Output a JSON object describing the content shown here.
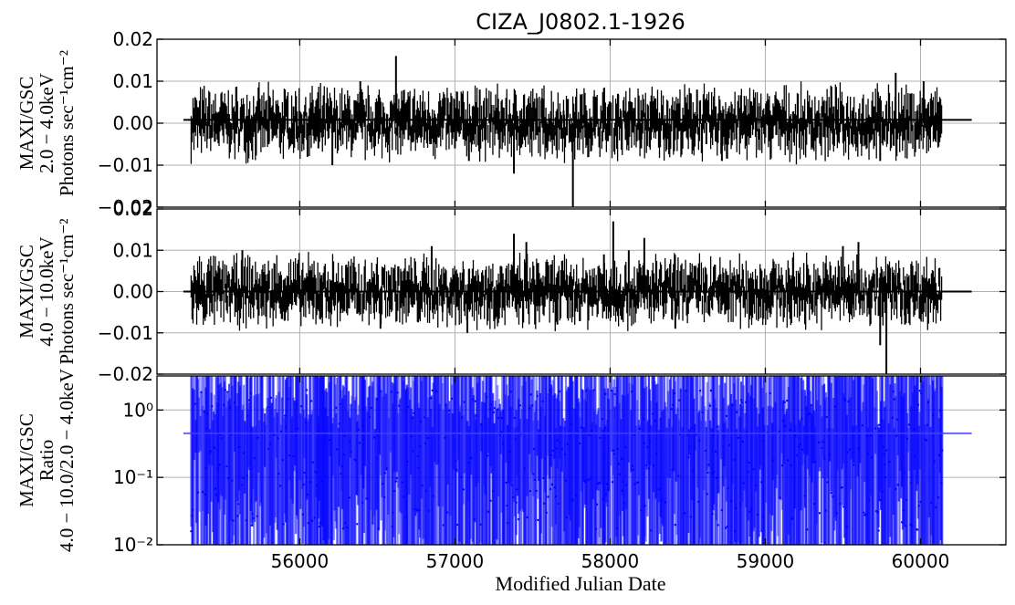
{
  "chart_data": {
    "type": "line",
    "title": "CIZA_J0802.1-1926",
    "xlabel": "Modified Julian Date",
    "xlim": [
      55080,
      60550
    ],
    "x_ticks": [
      56000,
      57000,
      58000,
      59000,
      60000
    ],
    "x_tick_labels": [
      "56000",
      "57000",
      "58000",
      "59000",
      "60000"
    ],
    "grid": true,
    "panels": [
      {
        "id": "soft",
        "ylabel_lines": [
          "MAXI/GSC",
          "2.0 − 4.0keV",
          "Photons sec⁻¹cm⁻²"
        ],
        "scale": "linear",
        "ylim": [
          -0.02,
          0.02
        ],
        "y_ticks": [
          -0.02,
          -0.01,
          0.0,
          0.01,
          0.02
        ],
        "y_tick_labels": [
          "−0.02",
          "−0.01",
          "0.00",
          "0.01",
          "0.02"
        ],
        "mean": 0.0008,
        "mean_x_range": [
          55250,
          60330
        ],
        "data_x_range": [
          55300,
          60140
        ],
        "color": "#000000",
        "points": [
          [
            55320,
            0.0015
          ],
          [
            55360,
            -0.003
          ],
          [
            55410,
            0.004
          ],
          [
            55450,
            -0.002
          ],
          [
            55500,
            0.005
          ],
          [
            55560,
            -0.004
          ],
          [
            55620,
            0.003
          ],
          [
            55680,
            -0.002
          ],
          [
            55720,
            0.004
          ],
          [
            55800,
            -0.005
          ],
          [
            55850,
            0.002
          ],
          [
            55900,
            -0.002
          ],
          [
            55960,
            0.004
          ],
          [
            56050,
            -0.008
          ],
          [
            56120,
            -0.006
          ],
          [
            56210,
            -0.01
          ],
          [
            56280,
            0.003
          ],
          [
            56360,
            -0.004
          ],
          [
            56390,
            0.01
          ],
          [
            56450,
            -0.003
          ],
          [
            56520,
            0.004
          ],
          [
            56580,
            -0.002
          ],
          [
            56620,
            0.016
          ],
          [
            56700,
            -0.004
          ],
          [
            56770,
            0.003
          ],
          [
            56840,
            -0.005
          ],
          [
            56920,
            0.004
          ],
          [
            57000,
            -0.006
          ],
          [
            57050,
            0.007
          ],
          [
            57090,
            -0.009
          ],
          [
            57160,
            0.008
          ],
          [
            57200,
            -0.004
          ],
          [
            57260,
            0.003
          ],
          [
            57320,
            -0.003
          ],
          [
            57380,
            -0.012
          ],
          [
            57420,
            0.003
          ],
          [
            57500,
            -0.002
          ],
          [
            57560,
            0.006
          ],
          [
            57620,
            -0.004
          ],
          [
            57700,
            0.003
          ],
          [
            57760,
            -0.02
          ],
          [
            57830,
            0.002
          ],
          [
            57880,
            -0.004
          ],
          [
            57950,
            0.003
          ],
          [
            58000,
            -0.003
          ],
          [
            58050,
            0.007
          ],
          [
            58100,
            -0.004
          ],
          [
            58140,
            0.005
          ],
          [
            58200,
            -0.006
          ],
          [
            58280,
            0.004
          ],
          [
            58360,
            -0.004
          ],
          [
            58420,
            0.003
          ],
          [
            58500,
            -0.003
          ],
          [
            58560,
            0.008
          ],
          [
            58620,
            -0.005
          ],
          [
            58680,
            0.004
          ],
          [
            58720,
            -0.009
          ],
          [
            58800,
            0.003
          ],
          [
            58880,
            -0.004
          ],
          [
            58960,
            0.004
          ],
          [
            59040,
            -0.003
          ],
          [
            59120,
            0.003
          ],
          [
            59200,
            -0.002
          ],
          [
            59280,
            0.004
          ],
          [
            59360,
            -0.003
          ],
          [
            59440,
            0.004
          ],
          [
            59500,
            -0.002
          ],
          [
            59560,
            0.003
          ],
          [
            59620,
            -0.004
          ],
          [
            59700,
            0.004
          ],
          [
            59740,
            -0.009
          ],
          [
            59800,
            0.004
          ],
          [
            59840,
            0.012
          ],
          [
            59900,
            -0.004
          ],
          [
            59980,
            0.003
          ],
          [
            60020,
            0.01
          ],
          [
            60060,
            -0.003
          ],
          [
            60110,
            0.005
          ]
        ]
      },
      {
        "id": "hard",
        "ylabel_lines": [
          "MAXI/GSC",
          "4.0 − 10.0keV",
          "Photons sec⁻¹cm⁻²"
        ],
        "scale": "linear",
        "ylim": [
          -0.02,
          0.02
        ],
        "y_ticks": [
          -0.02,
          -0.01,
          0.0,
          0.01,
          0.02
        ],
        "y_tick_labels": [
          "−0.02",
          "−0.01",
          "0.00",
          "0.01",
          "0.02"
        ],
        "mean": 0.0,
        "mean_x_range": [
          55250,
          60330
        ],
        "data_x_range": [
          55300,
          60140
        ],
        "color": "#000000",
        "points": [
          [
            55320,
            0.001
          ],
          [
            55370,
            -0.003
          ],
          [
            55420,
            0.005
          ],
          [
            55470,
            -0.002
          ],
          [
            55530,
            0.004
          ],
          [
            55590,
            -0.005
          ],
          [
            55630,
            0.01
          ],
          [
            55690,
            -0.003
          ],
          [
            55760,
            0.003
          ],
          [
            55820,
            -0.004
          ],
          [
            55880,
            0.004
          ],
          [
            55940,
            -0.003
          ],
          [
            56000,
            0.003
          ],
          [
            56060,
            -0.004
          ],
          [
            56140,
            0.004
          ],
          [
            56220,
            -0.003
          ],
          [
            56300,
            0.004
          ],
          [
            56380,
            -0.005
          ],
          [
            56450,
            0.003
          ],
          [
            56520,
            -0.009
          ],
          [
            56580,
            0.004
          ],
          [
            56650,
            -0.004
          ],
          [
            56700,
            0.004
          ],
          [
            56780,
            -0.004
          ],
          [
            56850,
            0.011
          ],
          [
            56920,
            -0.005
          ],
          [
            57000,
            0.005
          ],
          [
            57080,
            -0.01
          ],
          [
            57150,
            0.004
          ],
          [
            57220,
            -0.004
          ],
          [
            57300,
            0.006
          ],
          [
            57380,
            0.014
          ],
          [
            57420,
            -0.004
          ],
          [
            57460,
            0.012
          ],
          [
            57540,
            -0.003
          ],
          [
            57600,
            0.004
          ],
          [
            57660,
            -0.008
          ],
          [
            57720,
            0.004
          ],
          [
            57780,
            -0.004
          ],
          [
            57850,
            0.004
          ],
          [
            57900,
            -0.003
          ],
          [
            57960,
            0.009
          ],
          [
            58020,
            0.017
          ],
          [
            58060,
            -0.004
          ],
          [
            58120,
            0.01
          ],
          [
            58180,
            -0.004
          ],
          [
            58220,
            0.013
          ],
          [
            58300,
            -0.004
          ],
          [
            58360,
            0.005
          ],
          [
            58420,
            -0.009
          ],
          [
            58500,
            0.004
          ],
          [
            58560,
            -0.004
          ],
          [
            58620,
            0.004
          ],
          [
            58700,
            -0.005
          ],
          [
            58780,
            0.003
          ],
          [
            58860,
            -0.004
          ],
          [
            58940,
            0.003
          ],
          [
            59020,
            -0.004
          ],
          [
            59100,
            0.003
          ],
          [
            59200,
            -0.003
          ],
          [
            59280,
            0.004
          ],
          [
            59360,
            -0.003
          ],
          [
            59440,
            0.004
          ],
          [
            59500,
            0.011
          ],
          [
            59560,
            -0.004
          ],
          [
            59600,
            0.012
          ],
          [
            59660,
            -0.004
          ],
          [
            59740,
            -0.013
          ],
          [
            59780,
            -0.02
          ],
          [
            59840,
            0.004
          ],
          [
            59900,
            -0.008
          ],
          [
            59960,
            0.004
          ],
          [
            60020,
            -0.005
          ],
          [
            60080,
            0.005
          ],
          [
            60120,
            -0.002
          ]
        ]
      },
      {
        "id": "ratio",
        "ylabel_lines": [
          "MAXI/GSC",
          "Ratio",
          "4.0 − 10.0/2.0 − 4.0keV"
        ],
        "scale": "log",
        "ylim": [
          0.01,
          3.2
        ],
        "y_ticks": [
          0.01,
          0.1,
          1.0
        ],
        "y_tick_labels": [
          "10⁻²",
          "10⁻¹",
          "10⁰"
        ],
        "mean": 0.45,
        "mean_x_range": [
          55250,
          60330
        ],
        "data_x_range": [
          55300,
          60140
        ],
        "color": "#0000ff"
      }
    ]
  }
}
